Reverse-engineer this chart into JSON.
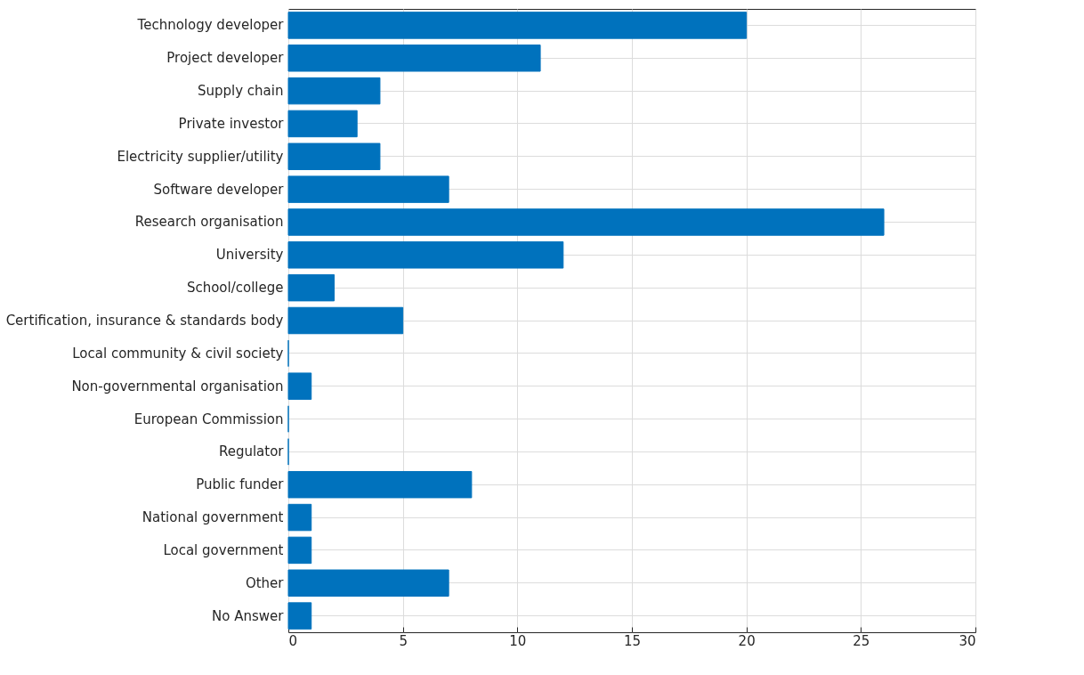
{
  "chart_data": {
    "type": "bar",
    "orientation": "horizontal",
    "categories": [
      "Technology developer",
      "Project developer",
      "Supply chain",
      "Private investor",
      "Electricity supplier/utility",
      "Software developer",
      "Research organisation",
      "University",
      "School/college",
      "Certification, insurance & standards body",
      "Local community & civil society",
      "Non-governmental organisation",
      "European Commission",
      "Regulator",
      "Public funder",
      "National government",
      "Local government",
      "Other",
      "No Answer"
    ],
    "values": [
      20,
      11,
      4,
      3,
      4,
      7,
      26,
      12,
      2,
      5,
      0,
      1,
      0,
      0,
      8,
      1,
      1,
      7,
      1
    ],
    "color": "#0072bd",
    "xlim": [
      0,
      30
    ],
    "xticks": [
      0,
      5,
      10,
      15,
      20,
      25,
      30
    ],
    "grid": true
  }
}
